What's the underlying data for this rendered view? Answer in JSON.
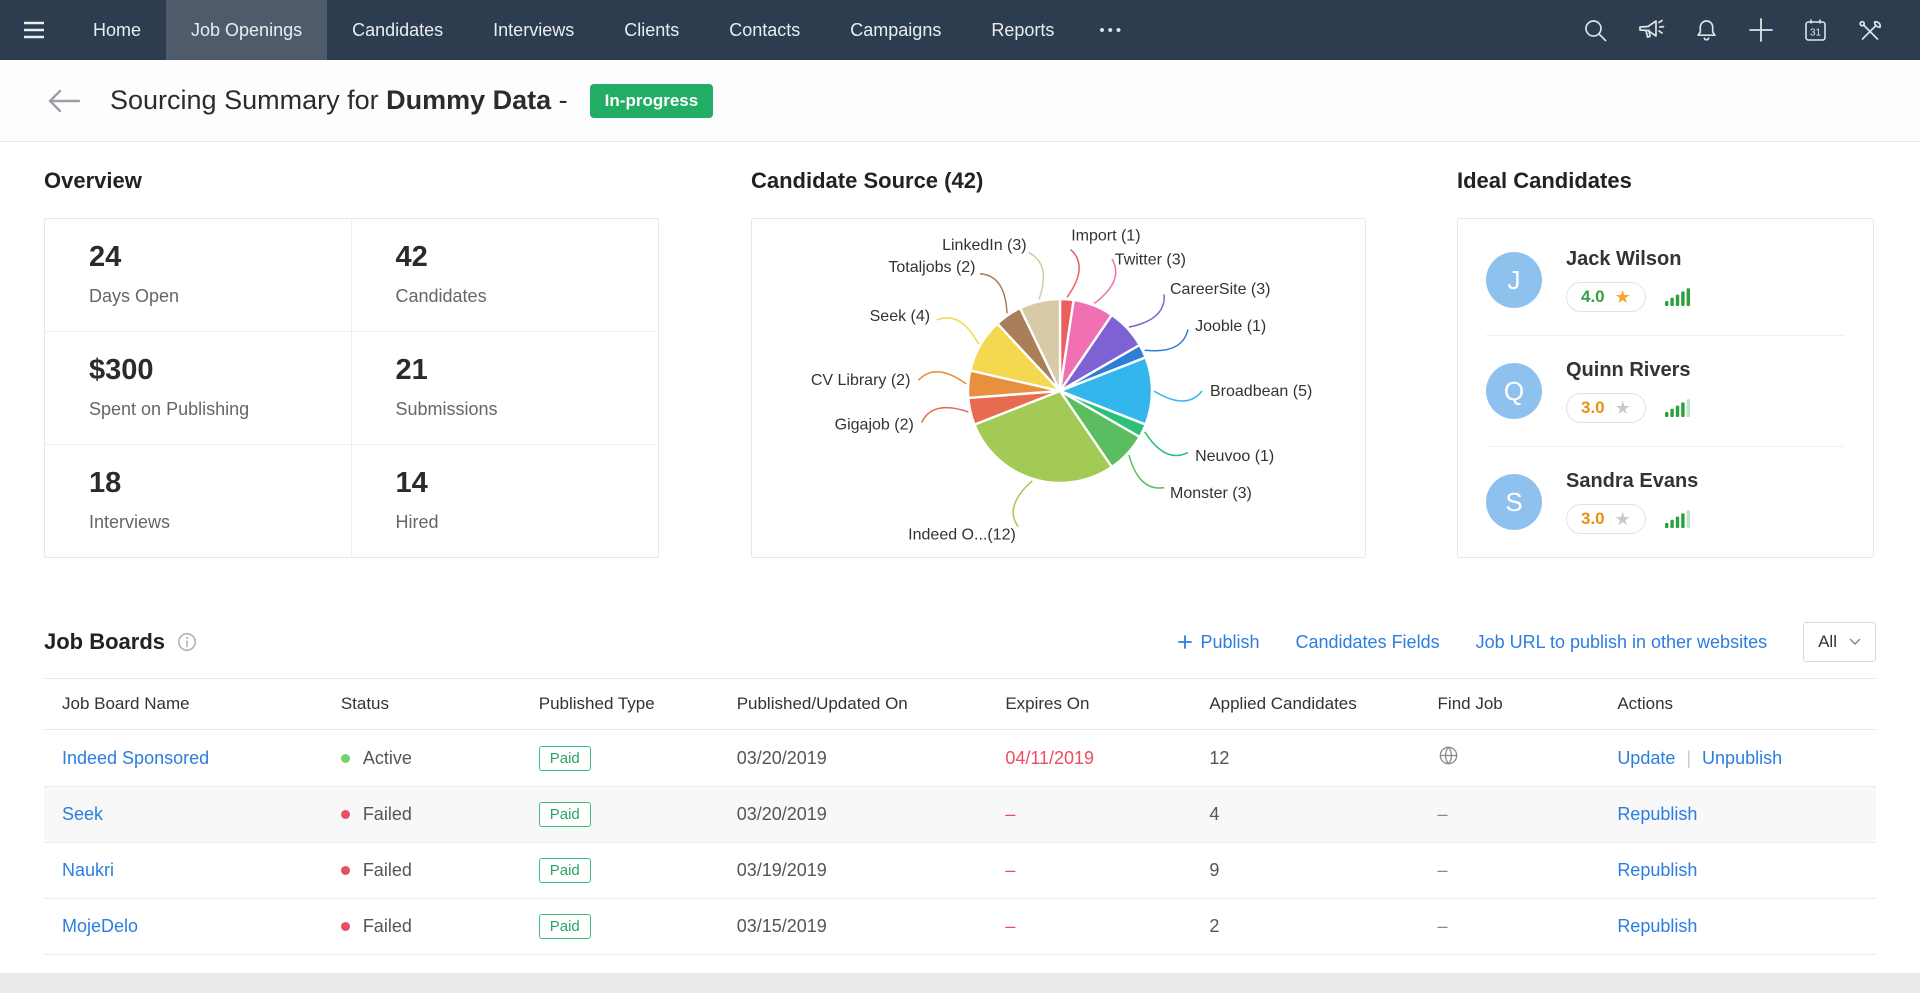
{
  "nav": {
    "items": [
      "Home",
      "Job Openings",
      "Candidates",
      "Interviews",
      "Clients",
      "Contacts",
      "Campaigns",
      "Reports"
    ],
    "active_item": "Job Openings",
    "more_label": "•••",
    "right_icons": [
      "search",
      "megaphone",
      "notifications",
      "add",
      "calendar",
      "tools"
    ]
  },
  "header": {
    "title_prefix": "Sourcing Summary for",
    "title_emphasis": "Dummy Data",
    "title_separator": "-",
    "status_badge": "In-progress"
  },
  "overview": {
    "title": "Overview",
    "cards": [
      {
        "value": "24",
        "label": "Days Open"
      },
      {
        "value": "42",
        "label": "Candidates"
      },
      {
        "value": "$300",
        "label": "Spent on Publishing"
      },
      {
        "value": "21",
        "label": "Submissions"
      },
      {
        "value": "18",
        "label": "Interviews"
      },
      {
        "value": "14",
        "label": "Hired"
      }
    ]
  },
  "chart_data": {
    "type": "pie",
    "title": "Candidate Source (42)",
    "total": 42,
    "legend_position": "callout-labels",
    "slices": [
      {
        "label": "Import",
        "display": "Import (1)",
        "value": 1,
        "color": "#ed5e5e"
      },
      {
        "label": "Twitter",
        "display": "Twitter (3)",
        "value": 3,
        "color": "#f170b4"
      },
      {
        "label": "CareerSite",
        "display": "CareerSite (3)",
        "value": 3,
        "color": "#7e62d3"
      },
      {
        "label": "Jooble",
        "display": "Jooble (1)",
        "value": 1,
        "color": "#2e7ed8"
      },
      {
        "label": "Broadbean",
        "display": "Broadbean (5)",
        "value": 5,
        "color": "#33b6ec"
      },
      {
        "label": "Neuvoo",
        "display": "Neuvoo (1)",
        "value": 1,
        "color": "#2cbf78"
      },
      {
        "label": "Monster",
        "display": "Monster (3)",
        "value": 3,
        "color": "#5abd5f"
      },
      {
        "label": "Indeed Organic",
        "display": "Indeed O...(12)",
        "value": 12,
        "color": "#a2ca55"
      },
      {
        "label": "Gigajob",
        "display": "Gigajob (2)",
        "value": 2,
        "color": "#e76b50"
      },
      {
        "label": "CV Library",
        "display": "CV Library (2)",
        "value": 2,
        "color": "#e79140"
      },
      {
        "label": "Seek",
        "display": "Seek (4)",
        "value": 4,
        "color": "#f4d84f"
      },
      {
        "label": "Totaljobs",
        "display": "Totaljobs (2)",
        "value": 2,
        "color": "#aa7e58"
      },
      {
        "label": "LinkedIn",
        "display": "LinkedIn (3)",
        "value": 3,
        "color": "#d8caa4"
      }
    ]
  },
  "ideal_candidates": {
    "title": "Ideal Candidates",
    "items": [
      {
        "name": "Jack Wilson",
        "initial": "J",
        "rating": "4.0",
        "rating_color": "#3a9e44",
        "star_color": "#f5a623",
        "signal_level": 5
      },
      {
        "name": "Quinn Rivers",
        "initial": "Q",
        "rating": "3.0",
        "rating_color": "#e5920e",
        "star_color": "#c9c9c9",
        "signal_level": 4
      },
      {
        "name": "Sandra Evans",
        "initial": "S",
        "rating": "3.0",
        "rating_color": "#e5920e",
        "star_color": "#c9c9c9",
        "signal_level": 4
      }
    ]
  },
  "job_boards": {
    "title": "Job Boards",
    "actions": {
      "publish": "Publish",
      "candidates_fields": "Candidates Fields",
      "job_url": "Job URL to publish in other websites",
      "filter_value": "All"
    },
    "table": {
      "columns": [
        "Job Board Name",
        "Status",
        "Published Type",
        "Published/Updated On",
        "Expires On",
        "Applied Candidates",
        "Find Job",
        "Actions"
      ],
      "rows": [
        {
          "name": "Indeed Sponsored",
          "status": "Active",
          "status_color": "#72d26f",
          "published_type": "Paid",
          "published_on": "03/20/2019",
          "expires_on": "04/11/2019",
          "expires_highlight": true,
          "applied_candidates": "12",
          "find_job": "globe",
          "actions": [
            "Update",
            "Unpublish"
          ],
          "highlight": false
        },
        {
          "name": "Seek",
          "status": "Failed",
          "status_color": "#e84f63",
          "published_type": "Paid",
          "published_on": "03/20/2019",
          "expires_on": "–",
          "expires_highlight": true,
          "applied_candidates": "4",
          "find_job": "–",
          "actions": [
            "Republish"
          ],
          "highlight": true
        },
        {
          "name": "Naukri",
          "status": "Failed",
          "status_color": "#e84f63",
          "published_type": "Paid",
          "published_on": "03/19/2019",
          "expires_on": "–",
          "expires_highlight": true,
          "applied_candidates": "9",
          "find_job": "–",
          "actions": [
            "Republish"
          ],
          "highlight": false
        },
        {
          "name": "MojeDelo",
          "status": "Failed",
          "status_color": "#e84f63",
          "published_type": "Paid",
          "published_on": "03/15/2019",
          "expires_on": "–",
          "expires_highlight": true,
          "applied_candidates": "2",
          "find_job": "–",
          "actions": [
            "Republish"
          ],
          "highlight": false
        }
      ]
    }
  },
  "colors": {
    "nav_bg": "#2d3c4e",
    "nav_active_bg": "#4f5b6a",
    "accent_blue": "#2b7de1",
    "badge_green": "#21ad64",
    "expired_red": "#ef4b61",
    "paid_green": "#27a566",
    "avatar_blue": "#8fc1ef"
  }
}
